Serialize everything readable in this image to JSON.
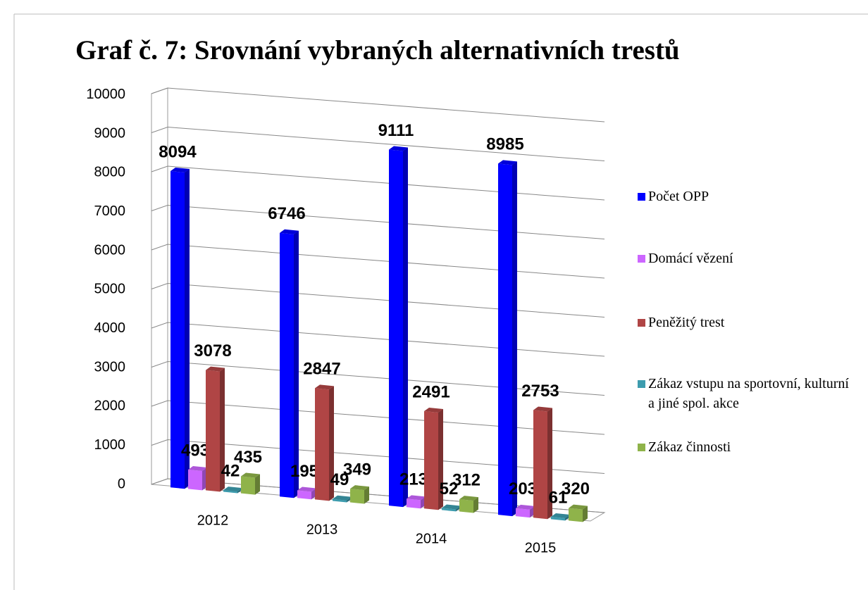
{
  "chart_data": {
    "type": "bar3d",
    "title": "Graf č. 7: Srovnání vybraných alternativních trestů",
    "categories": [
      "2012",
      "2013",
      "2014",
      "2015"
    ],
    "series": [
      {
        "name": "Počet OPP",
        "color": "#0000ff",
        "values": [
          8094,
          6746,
          9111,
          8985
        ]
      },
      {
        "name": "Domácí vězení",
        "color": "#cc66ff",
        "values": [
          493,
          195,
          213,
          203
        ]
      },
      {
        "name": "Peněžitý trest",
        "color": "#b04545",
        "values": [
          3078,
          2847,
          2491,
          2753
        ]
      },
      {
        "name": "Zákaz vstupu na sportovní, kulturní a jiné spol. akce",
        "color": "#3d9cae",
        "values": [
          42,
          49,
          52,
          61
        ]
      },
      {
        "name": "Zákaz činnosti",
        "color": "#8fb34a",
        "values": [
          435,
          349,
          312,
          320
        ]
      }
    ],
    "ylim": [
      0,
      10000
    ],
    "yticks": [
      0,
      1000,
      2000,
      3000,
      4000,
      5000,
      6000,
      7000,
      8000,
      9000,
      10000
    ],
    "grid": true,
    "legend": "right"
  }
}
